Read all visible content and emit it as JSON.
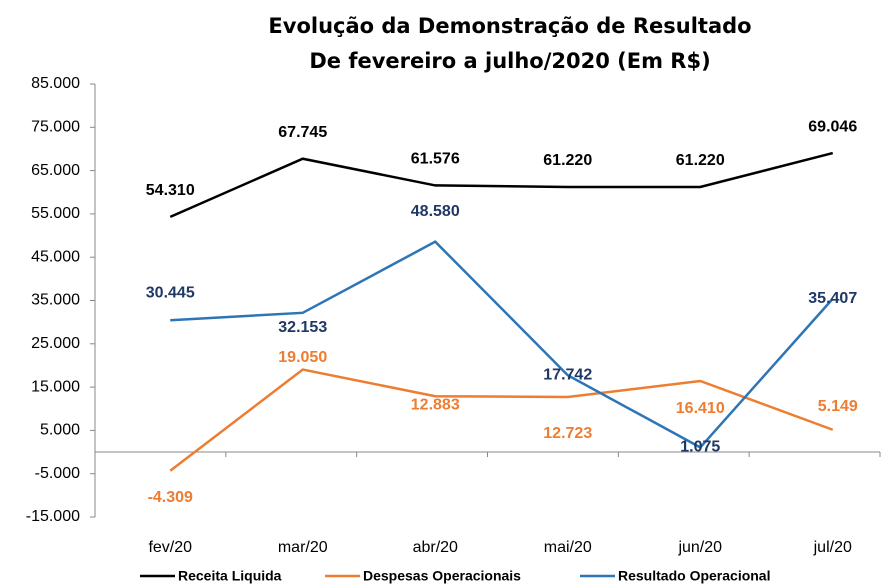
{
  "chart_data": {
    "type": "line",
    "title": "Evolução da Demonstração de Resultado",
    "subtitle": "De fevereiro a julho/2020 (Em R$)",
    "categories": [
      "fev/20",
      "mar/20",
      "abr/20",
      "mai/20",
      "jun/20",
      "jul/20"
    ],
    "series": [
      {
        "name": "Receita Liquida",
        "color": "#000000",
        "label_color": "#000000",
        "values": [
          54310,
          67745,
          61576,
          61220,
          61220,
          69046
        ],
        "value_labels": [
          "54.310",
          "67.745",
          "61.576",
          "61.220",
          "61.220",
          "69.046"
        ]
      },
      {
        "name": "Despesas Operacionais",
        "color": "#ed7d31",
        "label_color": "#ed7d31",
        "values": [
          -4309,
          19050,
          12883,
          12723,
          16410,
          5149
        ],
        "value_labels": [
          "-4.309",
          "19.050",
          "12.883",
          "12.723",
          "16.410",
          "5.149"
        ]
      },
      {
        "name": "Resultado Operacional",
        "color": "#2e75b6",
        "label_color": "#1f3864",
        "values": [
          30445,
          32153,
          48580,
          17742,
          1075,
          35407
        ],
        "value_labels": [
          "30.445",
          "32.153",
          "48.580",
          "17.742",
          "1.075",
          "35.407"
        ]
      }
    ],
    "ylim": [
      -15000,
      85000
    ],
    "yticks": [
      {
        "value": -15000,
        "label": "-15.000"
      },
      {
        "value": -5000,
        "label": "-5.000"
      },
      {
        "value": 5000,
        "label": "5.000"
      },
      {
        "value": 15000,
        "label": "15.000"
      },
      {
        "value": 25000,
        "label": "25.000"
      },
      {
        "value": 35000,
        "label": "35.000"
      },
      {
        "value": 45000,
        "label": "45.000"
      },
      {
        "value": 55000,
        "label": "55.000"
      },
      {
        "value": 65000,
        "label": "65.000"
      },
      {
        "value": 75000,
        "label": "75.000"
      },
      {
        "value": 85000,
        "label": "85.000"
      }
    ],
    "legend": "bottom"
  }
}
